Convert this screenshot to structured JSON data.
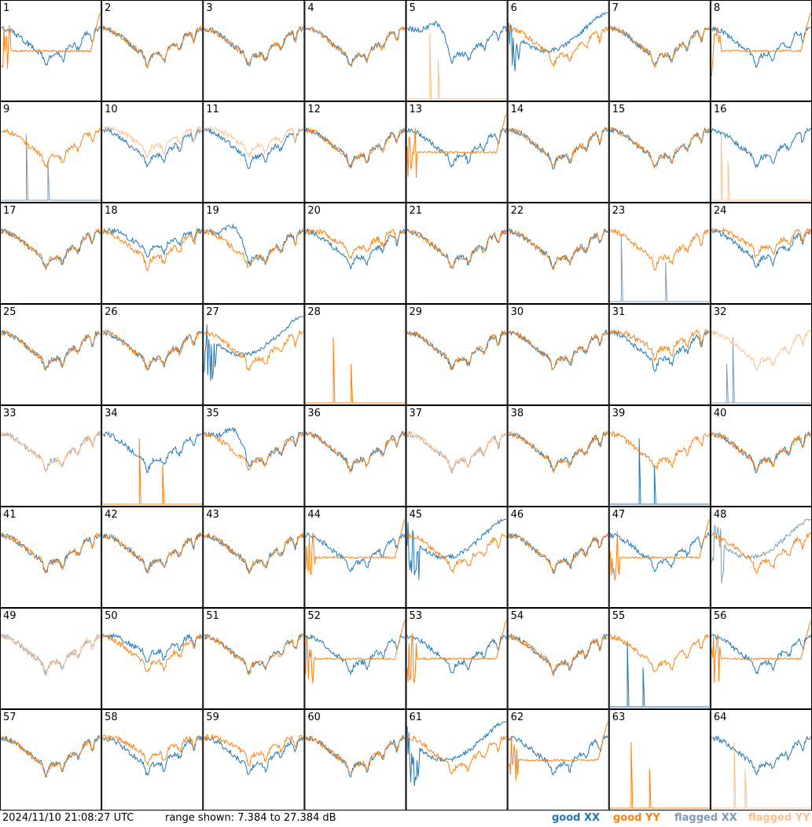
{
  "footer": {
    "timestamp": "2024/11/10 21:08:27 UTC",
    "range_text": "range shown: 7.384 to 27.384 dB"
  },
  "legend": [
    {
      "key": "good_xx",
      "prefix": "good",
      "pol": "XX",
      "color": "#1f77b4"
    },
    {
      "key": "good_yy",
      "prefix": "good",
      "pol": "YY",
      "color": "#ff7f0e"
    },
    {
      "key": "flagged_xx",
      "prefix": "flagged",
      "pol": "XX",
      "color": "#7f9bb4"
    },
    {
      "key": "flagged_yy",
      "prefix": "flagged",
      "pol": "YY",
      "color": "#ffbf8c"
    }
  ],
  "colors": {
    "good_xx": "#1f77b4",
    "good_yy": "#ff7f0e",
    "flagged_xx": "#7f9bb4",
    "flagged_yy": "#ffbf8c",
    "border": "#000000"
  },
  "chart_data": {
    "type": "line",
    "layout_grid": "8x8",
    "y_range_db": [
      7.384,
      27.384
    ],
    "series_names": [
      "good XX",
      "good YY",
      "flagged XX",
      "flagged YY"
    ],
    "panels": [
      {
        "id": 1,
        "xx": "normal",
        "yy": "roll",
        "xx_flag": false,
        "yy_flag": false
      },
      {
        "id": 2,
        "xx": "normal",
        "yy": "normal",
        "xx_flag": false,
        "yy_flag": false
      },
      {
        "id": 3,
        "xx": "normal",
        "yy": "normal",
        "xx_flag": false,
        "yy_flag": false
      },
      {
        "id": 4,
        "xx": "normal",
        "yy": "normal",
        "xx_flag": false,
        "yy_flag": false
      },
      {
        "id": 5,
        "xx": "dip",
        "yy": "spike",
        "xx_flag": false,
        "yy_flag": true
      },
      {
        "id": 6,
        "xx": "bump",
        "yy": "normal",
        "xx_flag": false,
        "yy_flag": false
      },
      {
        "id": 7,
        "xx": "normal",
        "yy": "normal",
        "xx_flag": false,
        "yy_flag": false
      },
      {
        "id": 8,
        "xx": "normal",
        "yy": "roll",
        "xx_flag": false,
        "yy_flag": false
      },
      {
        "id": 9,
        "xx": "spike",
        "yy": "normal",
        "xx_flag": true,
        "yy_flag": false
      },
      {
        "id": 10,
        "xx": "normal",
        "yy": "low",
        "xx_flag": false,
        "yy_flag": true
      },
      {
        "id": 11,
        "xx": "normal",
        "yy": "low",
        "xx_flag": false,
        "yy_flag": true
      },
      {
        "id": 12,
        "xx": "normal",
        "yy": "normal",
        "xx_flag": false,
        "yy_flag": false
      },
      {
        "id": 13,
        "xx": "normal",
        "yy": "roll",
        "xx_flag": false,
        "yy_flag": false
      },
      {
        "id": 14,
        "xx": "normal",
        "yy": "normal",
        "xx_flag": false,
        "yy_flag": false
      },
      {
        "id": 15,
        "xx": "normal",
        "yy": "normal",
        "xx_flag": false,
        "yy_flag": false
      },
      {
        "id": 16,
        "xx": "normal",
        "yy": "spike",
        "xx_flag": false,
        "yy_flag": true
      },
      {
        "id": 17,
        "xx": "normal",
        "yy": "normal",
        "xx_flag": false,
        "yy_flag": false
      },
      {
        "id": 18,
        "xx": "low",
        "yy": "normal",
        "xx_flag": false,
        "yy_flag": false
      },
      {
        "id": 19,
        "xx": "dip",
        "yy": "normal",
        "xx_flag": false,
        "yy_flag": false
      },
      {
        "id": 20,
        "xx": "normal",
        "yy": "low",
        "xx_flag": false,
        "yy_flag": false
      },
      {
        "id": 21,
        "xx": "normal",
        "yy": "normal",
        "xx_flag": false,
        "yy_flag": false
      },
      {
        "id": 22,
        "xx": "normal",
        "yy": "normal",
        "xx_flag": false,
        "yy_flag": false
      },
      {
        "id": 23,
        "xx": "spike",
        "yy": "normal",
        "xx_flag": true,
        "yy_flag": false
      },
      {
        "id": 24,
        "xx": "normal",
        "yy": "low",
        "xx_flag": false,
        "yy_flag": false
      },
      {
        "id": 25,
        "xx": "normal",
        "yy": "normal",
        "xx_flag": false,
        "yy_flag": false
      },
      {
        "id": 26,
        "xx": "normal",
        "yy": "normal",
        "xx_flag": false,
        "yy_flag": false
      },
      {
        "id": 27,
        "xx": "bump",
        "yy": "normal",
        "xx_flag": false,
        "yy_flag": false
      },
      {
        "id": 28,
        "xx": "none",
        "yy": "spike",
        "xx_flag": false,
        "yy_flag": false
      },
      {
        "id": 29,
        "xx": "normal",
        "yy": "normal",
        "xx_flag": false,
        "yy_flag": false
      },
      {
        "id": 30,
        "xx": "normal",
        "yy": "normal",
        "xx_flag": false,
        "yy_flag": false
      },
      {
        "id": 31,
        "xx": "normal",
        "yy": "low",
        "xx_flag": false,
        "yy_flag": false
      },
      {
        "id": 32,
        "xx": "spike",
        "yy": "normal",
        "xx_flag": true,
        "yy_flag": true
      },
      {
        "id": 33,
        "xx": "normal",
        "yy": "normal",
        "xx_flag": true,
        "yy_flag": true
      },
      {
        "id": 34,
        "xx": "normal",
        "yy": "spike",
        "xx_flag": false,
        "yy_flag": false
      },
      {
        "id": 35,
        "xx": "dip",
        "yy": "normal",
        "xx_flag": false,
        "yy_flag": false
      },
      {
        "id": 36,
        "xx": "normal",
        "yy": "normal",
        "xx_flag": false,
        "yy_flag": false
      },
      {
        "id": 37,
        "xx": "normal",
        "yy": "normal",
        "xx_flag": true,
        "yy_flag": true
      },
      {
        "id": 38,
        "xx": "normal",
        "yy": "normal",
        "xx_flag": false,
        "yy_flag": false
      },
      {
        "id": 39,
        "xx": "spike",
        "yy": "normal",
        "xx_flag": false,
        "yy_flag": false
      },
      {
        "id": 40,
        "xx": "normal",
        "yy": "normal",
        "xx_flag": false,
        "yy_flag": false
      },
      {
        "id": 41,
        "xx": "normal",
        "yy": "normal",
        "xx_flag": false,
        "yy_flag": false
      },
      {
        "id": 42,
        "xx": "normal",
        "yy": "normal",
        "xx_flag": false,
        "yy_flag": false
      },
      {
        "id": 43,
        "xx": "normal",
        "yy": "normal",
        "xx_flag": false,
        "yy_flag": false
      },
      {
        "id": 44,
        "xx": "normal",
        "yy": "roll",
        "xx_flag": false,
        "yy_flag": false
      },
      {
        "id": 45,
        "xx": "bump",
        "yy": "normal",
        "xx_flag": false,
        "yy_flag": false
      },
      {
        "id": 46,
        "xx": "normal",
        "yy": "normal",
        "xx_flag": false,
        "yy_flag": false
      },
      {
        "id": 47,
        "xx": "normal",
        "yy": "roll",
        "xx_flag": false,
        "yy_flag": false
      },
      {
        "id": 48,
        "xx": "bump",
        "yy": "normal",
        "xx_flag": true,
        "yy_flag": false
      },
      {
        "id": 49,
        "xx": "normal",
        "yy": "normal",
        "xx_flag": true,
        "yy_flag": true
      },
      {
        "id": 50,
        "xx": "low",
        "yy": "normal",
        "xx_flag": false,
        "yy_flag": false
      },
      {
        "id": 51,
        "xx": "normal",
        "yy": "normal",
        "xx_flag": false,
        "yy_flag": false
      },
      {
        "id": 52,
        "xx": "normal",
        "yy": "roll",
        "xx_flag": false,
        "yy_flag": false
      },
      {
        "id": 53,
        "xx": "normal",
        "yy": "roll",
        "xx_flag": false,
        "yy_flag": false
      },
      {
        "id": 54,
        "xx": "normal",
        "yy": "normal",
        "xx_flag": false,
        "yy_flag": false
      },
      {
        "id": 55,
        "xx": "spike",
        "yy": "normal",
        "xx_flag": false,
        "yy_flag": false
      },
      {
        "id": 56,
        "xx": "normal",
        "yy": "roll",
        "xx_flag": false,
        "yy_flag": false
      },
      {
        "id": 57,
        "xx": "normal",
        "yy": "normal",
        "xx_flag": false,
        "yy_flag": false
      },
      {
        "id": 58,
        "xx": "normal",
        "yy": "low",
        "xx_flag": false,
        "yy_flag": false
      },
      {
        "id": 59,
        "xx": "normal",
        "yy": "low",
        "xx_flag": false,
        "yy_flag": false
      },
      {
        "id": 60,
        "xx": "normal",
        "yy": "normal",
        "xx_flag": false,
        "yy_flag": false
      },
      {
        "id": 61,
        "xx": "bump",
        "yy": "normal",
        "xx_flag": false,
        "yy_flag": false
      },
      {
        "id": 62,
        "xx": "normal",
        "yy": "roll",
        "xx_flag": false,
        "yy_flag": false
      },
      {
        "id": 63,
        "xx": "none",
        "yy": "spike",
        "xx_flag": false,
        "yy_flag": false
      },
      {
        "id": 64,
        "xx": "normal",
        "yy": "spike",
        "xx_flag": false,
        "yy_flag": true
      }
    ]
  }
}
